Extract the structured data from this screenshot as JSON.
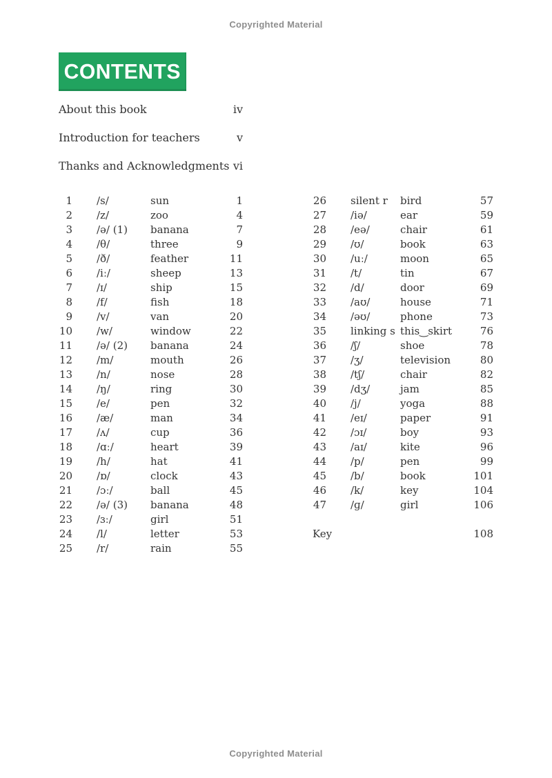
{
  "banner": {
    "label": "CONTENTS",
    "color": "#21a35f",
    "text_color": "#ffffff"
  },
  "copyright": {
    "top": "Copyrighted Material",
    "bottom": "Copyrighted Material",
    "color": "#8d8d8d"
  },
  "front_matter": [
    {
      "title": "About this book",
      "page": "iv"
    },
    {
      "title": "Introduction for teachers",
      "page": "v"
    },
    {
      "title": "Thanks and Acknowledgments",
      "page": "vi"
    }
  ],
  "contents": {
    "left": [
      {
        "num": "1",
        "symbol": "/s/",
        "word": "sun",
        "page": "1"
      },
      {
        "num": "2",
        "symbol": "/z/",
        "word": "zoo",
        "page": "4"
      },
      {
        "num": "3",
        "symbol": "/ə/ (1)",
        "word": "banana",
        "page": "7"
      },
      {
        "num": "4",
        "symbol": "/θ/",
        "word": "three",
        "page": "9"
      },
      {
        "num": "5",
        "symbol": "/ð/",
        "word": "feather",
        "page": "11"
      },
      {
        "num": "6",
        "symbol": "/iː/",
        "word": "sheep",
        "page": "13"
      },
      {
        "num": "7",
        "symbol": "/ɪ/",
        "word": "ship",
        "page": "15"
      },
      {
        "num": "8",
        "symbol": "/f/",
        "word": "fish",
        "page": "18"
      },
      {
        "num": "9",
        "symbol": "/v/",
        "word": "van",
        "page": "20"
      },
      {
        "num": "10",
        "symbol": "/w/",
        "word": "window",
        "page": "22"
      },
      {
        "num": "11",
        "symbol": "/ə/ (2)",
        "word": "banana",
        "page": "24"
      },
      {
        "num": "12",
        "symbol": "/m/",
        "word": "mouth",
        "page": "26"
      },
      {
        "num": "13",
        "symbol": "/n/",
        "word": "nose",
        "page": "28"
      },
      {
        "num": "14",
        "symbol": "/ŋ/",
        "word": "ring",
        "page": "30"
      },
      {
        "num": "15",
        "symbol": "/e/",
        "word": "pen",
        "page": "32"
      },
      {
        "num": "16",
        "symbol": "/æ/",
        "word": "man",
        "page": "34"
      },
      {
        "num": "17",
        "symbol": "/ʌ/",
        "word": "cup",
        "page": "36"
      },
      {
        "num": "18",
        "symbol": "/ɑː/",
        "word": "heart",
        "page": "39"
      },
      {
        "num": "19",
        "symbol": "/h/",
        "word": "hat",
        "page": "41"
      },
      {
        "num": "20",
        "symbol": "/ɒ/",
        "word": "clock",
        "page": "43"
      },
      {
        "num": "21",
        "symbol": "/ɔː/",
        "word": "ball",
        "page": "45"
      },
      {
        "num": "22",
        "symbol": "/ə/ (3)",
        "word": "banana",
        "page": "48"
      },
      {
        "num": "23",
        "symbol": "/ɜː/",
        "word": "girl",
        "page": "51"
      },
      {
        "num": "24",
        "symbol": "/l/",
        "word": "letter",
        "page": "53"
      },
      {
        "num": "25",
        "symbol": "/r/",
        "word": "rain",
        "page": "55"
      }
    ],
    "right": [
      {
        "num": "26",
        "symbol": "silent r",
        "word": "bird",
        "page": "57"
      },
      {
        "num": "27",
        "symbol": "/iə/",
        "word": "ear",
        "page": "59"
      },
      {
        "num": "28",
        "symbol": "/eə/",
        "word": "chair",
        "page": "61"
      },
      {
        "num": "29",
        "symbol": "/ʊ/",
        "word": "book",
        "page": "63"
      },
      {
        "num": "30",
        "symbol": "/uː/",
        "word": "moon",
        "page": "65"
      },
      {
        "num": "31",
        "symbol": "/t/",
        "word": "tin",
        "page": "67"
      },
      {
        "num": "32",
        "symbol": "/d/",
        "word": "door",
        "page": "69"
      },
      {
        "num": "33",
        "symbol": "/aʊ/",
        "word": "house",
        "page": "71"
      },
      {
        "num": "34",
        "symbol": "/əʊ/",
        "word": "phone",
        "page": "73"
      },
      {
        "num": "35",
        "symbol": "linking s",
        "word": "this‿skirt",
        "page": "76"
      },
      {
        "num": "36",
        "symbol": "/ʃ/",
        "word": "shoe",
        "page": "78"
      },
      {
        "num": "37",
        "symbol": "/ʒ/",
        "word": "television",
        "page": "80"
      },
      {
        "num": "38",
        "symbol": "/tʃ/",
        "word": "chair",
        "page": "82"
      },
      {
        "num": "39",
        "symbol": "/dʒ/",
        "word": "jam",
        "page": "85"
      },
      {
        "num": "40",
        "symbol": "/j/",
        "word": "yoga",
        "page": "88"
      },
      {
        "num": "41",
        "symbol": "/eɪ/",
        "word": "paper",
        "page": "91"
      },
      {
        "num": "42",
        "symbol": "/ɔɪ/",
        "word": "boy",
        "page": "93"
      },
      {
        "num": "43",
        "symbol": "/aɪ/",
        "word": "kite",
        "page": "96"
      },
      {
        "num": "44",
        "symbol": "/p/",
        "word": "pen",
        "page": "99"
      },
      {
        "num": "45",
        "symbol": "/b/",
        "word": "book",
        "page": "101"
      },
      {
        "num": "46",
        "symbol": "/k/",
        "word": "key",
        "page": "104"
      },
      {
        "num": "47",
        "symbol": "/ɡ/",
        "word": "girl",
        "page": "106"
      }
    ],
    "key": {
      "label": "Key",
      "page": "108"
    }
  }
}
